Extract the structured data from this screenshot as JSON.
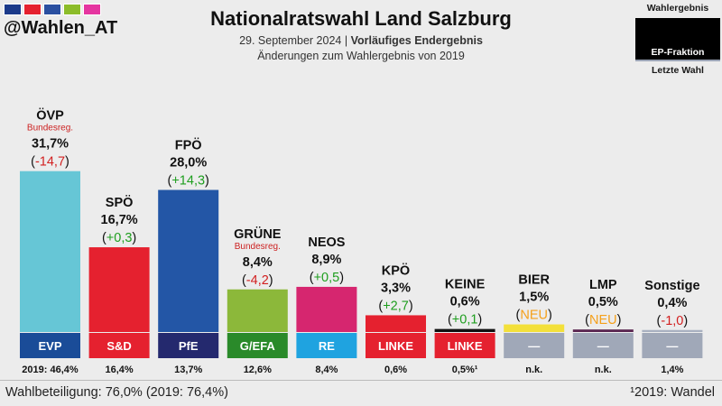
{
  "header": {
    "handle": "@Wahlen_AT",
    "title": "Nationalratswahl Land Salzburg",
    "date": "29. September 2024",
    "status": "Vorläufiges Endergebnis",
    "changes_note": "Änderungen zum Wahlergebnis von 2019",
    "strip_colors": [
      "#1b3a8a",
      "#e5212f",
      "#2a4fa0",
      "#8cbc2a",
      "#e535a0"
    ]
  },
  "legend": {
    "top_label": "Wahlergebnis",
    "mid_label": "EP-Fraktion",
    "bottom_label": "Letzte Wahl"
  },
  "footer": {
    "turnout": "Wahlbeteiligung: 76,0% (2019: 76,4%)",
    "footnote": "¹2019: Wandel"
  },
  "colors": {
    "positive": "#1e9e1e",
    "negative": "#d21f1f",
    "new": "#f5a01a",
    "neutral_fraction": "#a0a8b8"
  },
  "chart_data": {
    "type": "bar",
    "title": "Nationalratswahl Land Salzburg",
    "ylim": [
      0,
      32
    ],
    "categories": [
      "ÖVP",
      "SPÖ",
      "FPÖ",
      "GRÜNE",
      "NEOS",
      "KPÖ",
      "KEINE",
      "BIER",
      "LMP",
      "Sonstige"
    ],
    "values": [
      31.7,
      16.7,
      28.0,
      8.4,
      8.9,
      3.3,
      0.6,
      1.5,
      0.5,
      0.4
    ],
    "value_labels": [
      "31,7%",
      "16,7%",
      "28,0%",
      "8,4%",
      "8,9%",
      "3,3%",
      "0,6%",
      "1,5%",
      "0,5%",
      "0,4%"
    ],
    "changes": [
      "-14,7",
      "+0,3",
      "+14,3",
      "-4,2",
      "+0,5",
      "+2,7",
      "+0,1",
      "NEU",
      "NEU",
      "-1,0"
    ],
    "change_types": [
      "neg",
      "pos",
      "pos",
      "neg",
      "pos",
      "pos",
      "pos",
      "new",
      "new",
      "neg"
    ],
    "notes": [
      "Bundesreg.",
      "",
      "",
      "Bundesreg.",
      "",
      "",
      "",
      "",
      "",
      ""
    ],
    "bar_colors": [
      "#66c6d6",
      "#e5212f",
      "#2356a6",
      "#8cb83a",
      "#d6266f",
      "#e5212f",
      "#111111",
      "#f3e03a",
      "#5a2550",
      "#a8b0c0"
    ],
    "ep_fractions": [
      "EVP",
      "S&D",
      "PfE",
      "G/EFA",
      "RE",
      "LINKE",
      "LINKE",
      "—",
      "—",
      "—"
    ],
    "ep_colors": [
      "#1a4c98",
      "#e5212f",
      "#24296e",
      "#2a8a2a",
      "#1fa3e0",
      "#e5212f",
      "#e5212f",
      "#a0a8b8",
      "#a0a8b8",
      "#a0a8b8"
    ],
    "previous": [
      "2019: 46,4%",
      "16,4%",
      "13,7%",
      "12,6%",
      "8,4%",
      "0,6%",
      "0,5%¹",
      "n.k.",
      "n.k.",
      "1,4%"
    ]
  }
}
